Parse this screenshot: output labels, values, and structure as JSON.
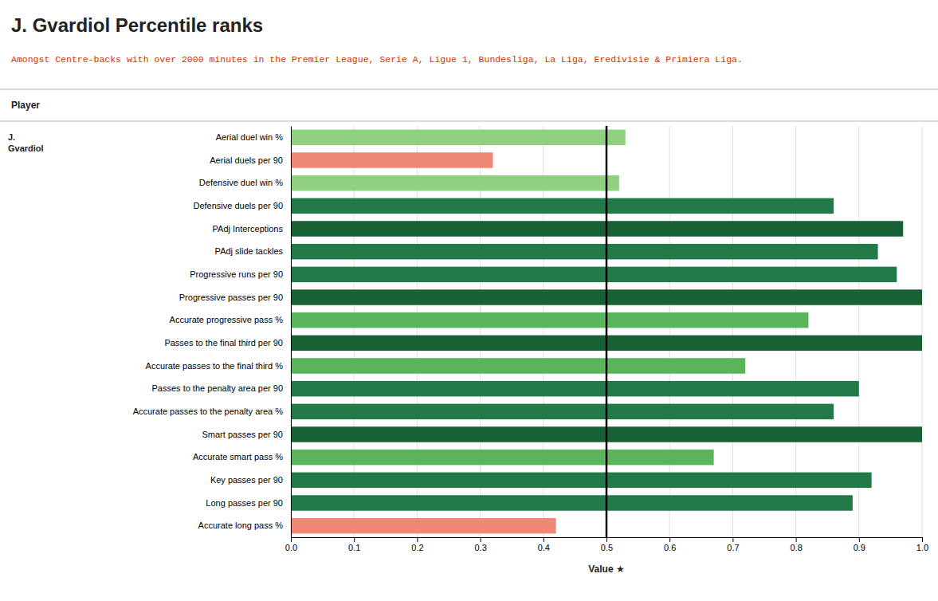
{
  "chart_data": {
    "type": "bar",
    "orientation": "horizontal",
    "title": "J. Gvardiol Percentile ranks",
    "subtitle": "Amongst Centre-backs with over 2000 minutes in the Premier League, Serie A, Ligue 1, Bundesliga, La Liga, Eredivisie & Primiera Liga.",
    "annotations": [
      "Player",
      "J.\nGvardiol"
    ],
    "xlabel": "Value ★",
    "categories": [
      "Aerial duel win %",
      "Aerial duels per 90",
      "Defensive duel win %",
      "Defensive duels per 90",
      "PAdj Interceptions",
      "PAdj slide tackles",
      "Progressive runs per 90",
      "Progressive passes per 90",
      "Accurate progressive pass %",
      "Passes to the final third per 90",
      "Accurate passes to the final third %",
      "Passes to the penalty area per 90",
      "Accurate passes to the penalty area %",
      "Smart passes per 90",
      "Accurate smart pass %",
      "Key passes per 90",
      "Long passes per 90",
      "Accurate long pass %"
    ],
    "values": [
      0.53,
      0.32,
      0.52,
      0.86,
      0.97,
      0.93,
      0.96,
      1.0,
      0.82,
      1.0,
      0.72,
      0.9,
      0.86,
      1.0,
      0.67,
      0.92,
      0.89,
      0.42
    ],
    "colors": [
      "#90d080",
      "#f08878",
      "#90d080",
      "#217a47",
      "#1a6035",
      "#217a47",
      "#217a47",
      "#1a6035",
      "#5ab55a",
      "#1a6035",
      "#5ab55a",
      "#217a47",
      "#217a47",
      "#1a6035",
      "#5ab55a",
      "#217a47",
      "#217a47",
      "#f08878"
    ],
    "reference_line": 0.5,
    "xlim": [
      0.0,
      1.0
    ],
    "xticks": [
      {
        "value": 0,
        "label": "0.0"
      },
      0.1,
      0.2,
      0.3,
      0.4,
      0.5,
      0.6,
      0.7,
      0.8,
      0.9,
      {
        "value": 1,
        "label": "1.0"
      }
    ],
    "grid": true
  }
}
